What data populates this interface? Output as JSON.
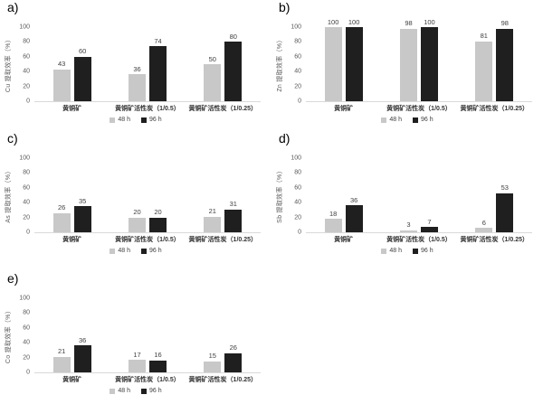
{
  "page": {
    "background": "#ffffff"
  },
  "colors": {
    "bar_48h": "#c8c8c8",
    "bar_96h": "#1f1f1f",
    "axis_line": "#d9d9d9",
    "tick_text": "#595959",
    "value_text": "#404040"
  },
  "legend": {
    "items": [
      {
        "label": "48 h",
        "color": "#c8c8c8"
      },
      {
        "label": "96 h",
        "color": "#1f1f1f"
      }
    ]
  },
  "chart_data": [
    {
      "type": "bar",
      "panel_label": "a)",
      "ylabel": "Cu 提取效率（%）",
      "xlabel": "",
      "ylim": [
        0,
        100
      ],
      "yticks": [
        0,
        20,
        40,
        60,
        80,
        100
      ],
      "grid": false,
      "legend_position": "bottom",
      "categories": [
        "黄铜矿",
        "黄铜矿活性炭（1/0.5）",
        "黄铜矿活性炭（1/0.25）"
      ],
      "series": [
        {
          "name": "48 h",
          "values": [
            43,
            36,
            50
          ]
        },
        {
          "name": "96 h",
          "values": [
            60,
            74,
            80
          ]
        }
      ]
    },
    {
      "type": "bar",
      "panel_label": "b)",
      "ylabel": "Zn 提取效率（%）",
      "xlabel": "",
      "ylim": [
        0,
        100
      ],
      "yticks": [
        0,
        20,
        40,
        60,
        80,
        100
      ],
      "grid": false,
      "legend_position": "bottom",
      "categories": [
        "黄铜矿",
        "黄铜矿活性炭（1/0.5）",
        "黄铜矿活性炭（1/0.25）"
      ],
      "series": [
        {
          "name": "48 h",
          "values": [
            100,
            98,
            81
          ]
        },
        {
          "name": "96 h",
          "values": [
            100,
            100,
            98
          ]
        }
      ]
    },
    {
      "type": "bar",
      "panel_label": "c)",
      "ylabel": "As 提取效率（%）",
      "xlabel": "",
      "ylim": [
        0,
        100
      ],
      "yticks": [
        0,
        20,
        40,
        60,
        80,
        100
      ],
      "grid": false,
      "legend_position": "bottom",
      "categories": [
        "黄铜矿",
        "黄铜矿活性炭（1/0.5）",
        "黄铜矿活性炭（1/0.25）"
      ],
      "series": [
        {
          "name": "48 h",
          "values": [
            26,
            20,
            21
          ]
        },
        {
          "name": "96 h",
          "values": [
            35,
            20,
            31
          ]
        }
      ]
    },
    {
      "type": "bar",
      "panel_label": "d)",
      "ylabel": "Sb 提取效率（%）",
      "xlabel": "",
      "ylim": [
        0,
        100
      ],
      "yticks": [
        0,
        20,
        40,
        60,
        80,
        100
      ],
      "grid": false,
      "legend_position": "bottom",
      "categories": [
        "黄铜矿",
        "黄铜矿活性炭（1/0.5）",
        "黄铜矿活性炭（1/0.25）"
      ],
      "series": [
        {
          "name": "48 h",
          "values": [
            18,
            3,
            6
          ]
        },
        {
          "name": "96 h",
          "values": [
            36,
            7,
            53
          ]
        }
      ]
    },
    {
      "type": "bar",
      "panel_label": "e)",
      "ylabel": "Co 提取效率（%）",
      "xlabel": "",
      "ylim": [
        0,
        100
      ],
      "yticks": [
        0,
        20,
        40,
        60,
        80,
        100
      ],
      "grid": false,
      "legend_position": "bottom",
      "categories": [
        "黄铜矿",
        "黄铜矿活性炭（1/0.5）",
        "黄铜矿活性炭（1/0.25）"
      ],
      "series": [
        {
          "name": "48 h",
          "values": [
            21,
            17,
            15
          ]
        },
        {
          "name": "96 h",
          "values": [
            36,
            16,
            26
          ]
        }
      ]
    }
  ]
}
